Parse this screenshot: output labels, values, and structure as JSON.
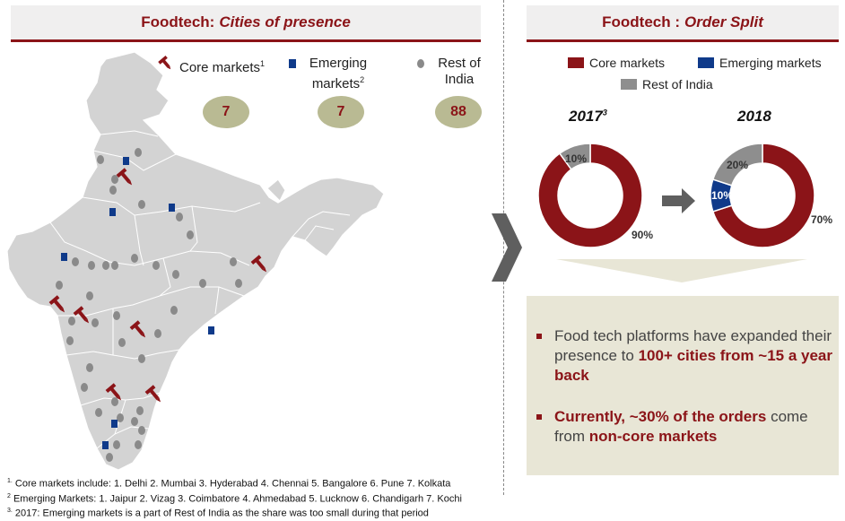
{
  "left_header": {
    "prefix": "Foodtech:",
    "italic": "Cities of presence"
  },
  "right_header": {
    "prefix": "Foodtech :",
    "italic": "Order Split"
  },
  "map_legend": {
    "core": {
      "label": "Core markets",
      "sup": "1"
    },
    "emerging": {
      "line1": "Emerging",
      "line2": "markets",
      "sup": "2"
    },
    "rest": {
      "line1": "Rest of",
      "line2": "India"
    }
  },
  "counts": {
    "core": "7",
    "emerging": "7",
    "rest": "88"
  },
  "order_split": {
    "legend": {
      "core": "Core markets",
      "emerging": "Emerging markets",
      "rest": "Rest of India"
    },
    "colors": {
      "core": "#8b1418",
      "emerging": "#0f3a8a",
      "rest": "#8e8e8e"
    },
    "year_2017": {
      "label": "2017",
      "sup": "3",
      "core_pct": "90%",
      "rest_pct": "10%",
      "core": 90,
      "rest": 10
    },
    "year_2018": {
      "label": "2018",
      "core_pct": "70%",
      "emerging_pct": "10%",
      "rest_pct": "20%",
      "core": 70,
      "emerging": 10,
      "rest": 20
    }
  },
  "callout": {
    "b1_plain": "Food tech platforms have expanded their presence to ",
    "b1_bold": "100+ cities from ~15 a year back",
    "b2_bold": "Currently, ~30% of the orders",
    "b2_plain": " come from ",
    "b2_bold2": "non-core markets"
  },
  "footnotes": {
    "n1_sup": "1.",
    "n1": " Core markets include:  1. Delhi 2. Mumbai 3. Hyderabad 4. Chennai 5. Bangalore 6. Pune 7. Kolkata",
    "n2_sup": "2",
    "n2": " Emerging Markets: 1. Jaipur 2. Vizag  3. Coimbatore 4. Ahmedabad  5. Lucknow 6. Chandigarh 7. Kochi",
    "n3_sup": "3.",
    "n3": " 2017: Emerging markets is a part of Rest of India as the share was too small during that period"
  }
}
